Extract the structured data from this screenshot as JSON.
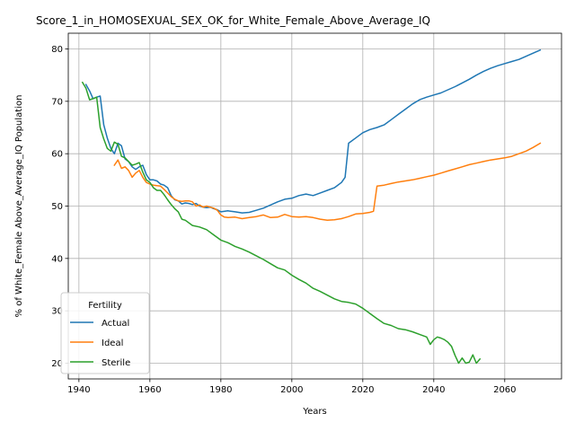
{
  "chart_data": {
    "type": "line",
    "title": "Score_1_in_HOMOSEXUAL_SEX_OK_for_White_Female_Above_Average_IQ",
    "xlabel": "Years",
    "ylabel": "% of White_Female Above_Average_IQ Population",
    "xlim": [
      1937,
      2076
    ],
    "ylim": [
      17,
      83
    ],
    "xticks": [
      1940,
      1960,
      1980,
      2000,
      2020,
      2040,
      2060
    ],
    "yticks": [
      20,
      30,
      40,
      50,
      60,
      70,
      80
    ],
    "grid": true,
    "legend": {
      "title": "Fertility",
      "position": "lower-left"
    },
    "series": [
      {
        "name": "Actual",
        "color": "#1f77b4",
        "x": [
          1942,
          1943,
          1944,
          1945,
          1946,
          1947,
          1948,
          1949,
          1950,
          1951,
          1952,
          1953,
          1954,
          1955,
          1956,
          1957,
          1958,
          1959,
          1960,
          1961,
          1962,
          1963,
          1964,
          1965,
          1966,
          1967,
          1968,
          1969,
          1970,
          1971,
          1972,
          1973,
          1974,
          1975,
          1976,
          1977,
          1978,
          1979,
          1980,
          1982,
          1984,
          1986,
          1988,
          1990,
          1992,
          1994,
          1996,
          1998,
          2000,
          2002,
          2004,
          2006,
          2008,
          2010,
          2012,
          2014,
          2015,
          2016,
          2018,
          2020,
          2022,
          2024,
          2026,
          2028,
          2030,
          2032,
          2034,
          2036,
          2038,
          2040,
          2042,
          2044,
          2046,
          2048,
          2050,
          2052,
          2054,
          2056,
          2058,
          2060,
          2062,
          2064,
          2066,
          2068,
          2070
        ],
        "y": [
          73.2,
          72.0,
          70.5,
          70.8,
          71.0,
          65.5,
          63.0,
          61.0,
          60.0,
          62.0,
          61.5,
          59.0,
          58.5,
          57.5,
          57.0,
          57.5,
          57.8,
          56.0,
          55.0,
          55.0,
          54.8,
          54.2,
          54.0,
          53.5,
          52.0,
          51.2,
          51.0,
          50.4,
          50.6,
          50.5,
          50.3,
          50.5,
          50.0,
          49.8,
          49.7,
          49.8,
          49.5,
          49.3,
          48.9,
          49.1,
          48.9,
          48.7,
          48.8,
          49.2,
          49.6,
          50.2,
          50.8,
          51.3,
          51.5,
          52.0,
          52.3,
          52.0,
          52.5,
          53.0,
          53.5,
          54.5,
          55.5,
          62.0,
          63.0,
          64.0,
          64.6,
          65.0,
          65.5,
          66.5,
          67.5,
          68.5,
          69.5,
          70.3,
          70.8,
          71.2,
          71.6,
          72.2,
          72.8,
          73.5,
          74.2,
          75.0,
          75.7,
          76.3,
          76.8,
          77.2,
          77.6,
          78.0,
          78.6,
          79.2,
          79.8
        ]
      },
      {
        "name": "Ideal",
        "color": "#ff7f0e",
        "x": [
          1950,
          1951,
          1952,
          1953,
          1954,
          1955,
          1956,
          1957,
          1958,
          1959,
          1960,
          1961,
          1962,
          1963,
          1964,
          1965,
          1966,
          1967,
          1968,
          1969,
          1970,
          1971,
          1972,
          1973,
          1974,
          1975,
          1976,
          1977,
          1978,
          1979,
          1980,
          1981,
          1982,
          1984,
          1986,
          1988,
          1990,
          1992,
          1994,
          1996,
          1998,
          2000,
          2002,
          2004,
          2006,
          2008,
          2010,
          2012,
          2014,
          2016,
          2018,
          2020,
          2022,
          2023,
          2024,
          2026,
          2028,
          2030,
          2032,
          2034,
          2036,
          2038,
          2040,
          2042,
          2044,
          2046,
          2048,
          2050,
          2052,
          2054,
          2056,
          2058,
          2060,
          2062,
          2064,
          2066,
          2068,
          2070
        ],
        "y": [
          57.8,
          58.8,
          57.2,
          57.5,
          56.8,
          55.5,
          56.3,
          56.8,
          55.5,
          54.5,
          54.2,
          54.0,
          53.9,
          53.8,
          53.2,
          52.5,
          51.8,
          51.3,
          51.0,
          50.9,
          51.0,
          51.0,
          50.8,
          50.0,
          50.2,
          49.8,
          50.0,
          49.8,
          49.6,
          49.2,
          48.3,
          47.9,
          47.8,
          47.9,
          47.6,
          47.8,
          48.0,
          48.3,
          47.8,
          47.9,
          48.4,
          48.0,
          47.9,
          48.0,
          47.8,
          47.5,
          47.3,
          47.4,
          47.6,
          48.0,
          48.5,
          48.6,
          48.8,
          49.0,
          53.8,
          54.0,
          54.3,
          54.6,
          54.8,
          55.0,
          55.3,
          55.6,
          55.9,
          56.3,
          56.7,
          57.1,
          57.5,
          57.9,
          58.2,
          58.5,
          58.8,
          59.0,
          59.2,
          59.5,
          60.0,
          60.5,
          61.2,
          62.0
        ]
      },
      {
        "name": "Sterile",
        "color": "#2ca02c",
        "x": [
          1941,
          1942,
          1943,
          1944,
          1945,
          1946,
          1947,
          1948,
          1949,
          1950,
          1951,
          1952,
          1953,
          1954,
          1955,
          1956,
          1957,
          1958,
          1959,
          1960,
          1961,
          1962,
          1963,
          1964,
          1965,
          1966,
          1967,
          1968,
          1969,
          1970,
          1972,
          1974,
          1976,
          1978,
          1980,
          1982,
          1984,
          1986,
          1988,
          1990,
          1992,
          1994,
          1996,
          1998,
          2000,
          2002,
          2004,
          2006,
          2008,
          2010,
          2012,
          2014,
          2016,
          2018,
          2020,
          2022,
          2024,
          2026,
          2028,
          2030,
          2032,
          2034,
          2036,
          2038,
          2039,
          2040,
          2041,
          2042,
          2043,
          2044,
          2045,
          2046,
          2047,
          2048,
          2049,
          2050,
          2051,
          2052,
          2053
        ],
        "y": [
          73.6,
          72.5,
          70.3,
          70.5,
          70.8,
          65.0,
          62.8,
          61.0,
          60.5,
          62.2,
          61.8,
          59.5,
          59.2,
          58.5,
          57.8,
          58.0,
          58.3,
          56.5,
          55.0,
          54.5,
          53.5,
          53.0,
          53.0,
          52.2,
          51.2,
          50.3,
          49.5,
          48.9,
          47.5,
          47.3,
          46.3,
          46.0,
          45.5,
          44.5,
          43.5,
          43.0,
          42.3,
          41.8,
          41.2,
          40.5,
          39.8,
          39.0,
          38.2,
          37.8,
          36.8,
          36.0,
          35.3,
          34.3,
          33.7,
          33.0,
          32.3,
          31.8,
          31.6,
          31.3,
          30.5,
          29.5,
          28.5,
          27.6,
          27.2,
          26.6,
          26.4,
          26.0,
          25.5,
          25.0,
          23.6,
          24.5,
          25.0,
          24.8,
          24.5,
          24.0,
          23.2,
          21.5,
          20.0,
          21.0,
          20.0,
          20.2,
          21.6,
          20.0,
          20.8
        ]
      }
    ]
  }
}
